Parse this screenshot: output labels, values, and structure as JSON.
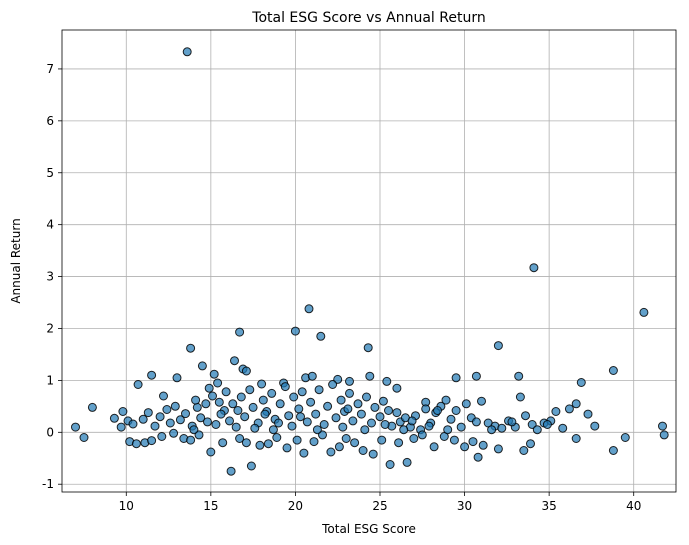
{
  "chart_data": {
    "type": "scatter",
    "title": "Total ESG Score vs Annual Return",
    "xlabel": "Total ESG Score",
    "ylabel": "Annual Return",
    "xlim": [
      6.2,
      42.5
    ],
    "ylim": [
      -1.15,
      7.75
    ],
    "xticks": [
      10,
      15,
      20,
      25,
      30,
      35,
      40
    ],
    "yticks": [
      -1,
      0,
      1,
      2,
      3,
      4,
      5,
      6,
      7
    ],
    "grid": true,
    "marker_color": "#1f77b4",
    "marker_edge_color": "#000000",
    "marker_alpha": 0.7,
    "points": [
      [
        13.6,
        7.33
      ],
      [
        34.1,
        3.17
      ],
      [
        40.6,
        2.31
      ],
      [
        20.8,
        2.38
      ],
      [
        20.0,
        1.95
      ],
      [
        16.7,
        1.93
      ],
      [
        21.5,
        1.85
      ],
      [
        32.0,
        1.67
      ],
      [
        13.8,
        1.62
      ],
      [
        24.3,
        1.63
      ],
      [
        14.5,
        1.28
      ],
      [
        16.4,
        1.38
      ],
      [
        16.9,
        1.22
      ],
      [
        38.8,
        1.19
      ],
      [
        11.5,
        1.1
      ],
      [
        13.0,
        1.05
      ],
      [
        15.2,
        1.12
      ],
      [
        10.7,
        0.92
      ],
      [
        12.2,
        0.7
      ],
      [
        14.2,
        0.48
      ],
      [
        15.8,
        0.42
      ],
      [
        17.1,
        1.18
      ],
      [
        18.0,
        0.93
      ],
      [
        19.3,
        0.95
      ],
      [
        20.6,
        1.05
      ],
      [
        21.0,
        1.08
      ],
      [
        22.5,
        1.02
      ],
      [
        23.2,
        0.98
      ],
      [
        24.4,
        1.08
      ],
      [
        25.4,
        0.98
      ],
      [
        26.0,
        0.85
      ],
      [
        27.7,
        0.58
      ],
      [
        29.5,
        1.05
      ],
      [
        30.7,
        1.08
      ],
      [
        33.2,
        1.08
      ],
      [
        36.9,
        0.96
      ],
      [
        9.8,
        0.4
      ],
      [
        10.1,
        0.22
      ],
      [
        10.4,
        0.16
      ],
      [
        11.0,
        0.25
      ],
      [
        11.3,
        0.38
      ],
      [
        11.7,
        0.12
      ],
      [
        12.0,
        0.3
      ],
      [
        12.4,
        0.44
      ],
      [
        12.6,
        0.18
      ],
      [
        12.9,
        0.5
      ],
      [
        13.2,
        0.24
      ],
      [
        13.5,
        0.36
      ],
      [
        13.9,
        0.12
      ],
      [
        14.1,
        0.62
      ],
      [
        14.4,
        0.28
      ],
      [
        14.7,
        0.55
      ],
      [
        14.9,
        0.85
      ],
      [
        15.1,
        0.7
      ],
      [
        15.4,
        0.95
      ],
      [
        15.6,
        0.35
      ],
      [
        15.9,
        0.78
      ],
      [
        16.1,
        0.22
      ],
      [
        16.3,
        0.55
      ],
      [
        16.6,
        0.42
      ],
      [
        16.8,
        0.68
      ],
      [
        17.0,
        0.3
      ],
      [
        17.3,
        0.82
      ],
      [
        17.5,
        0.48
      ],
      [
        17.8,
        0.18
      ],
      [
        18.1,
        0.62
      ],
      [
        18.3,
        0.4
      ],
      [
        18.6,
        0.75
      ],
      [
        18.8,
        0.25
      ],
      [
        19.1,
        0.55
      ],
      [
        19.4,
        0.88
      ],
      [
        19.6,
        0.32
      ],
      [
        19.9,
        0.68
      ],
      [
        20.2,
        0.45
      ],
      [
        20.4,
        0.78
      ],
      [
        20.7,
        0.2
      ],
      [
        20.9,
        0.58
      ],
      [
        21.2,
        0.35
      ],
      [
        21.4,
        0.82
      ],
      [
        21.7,
        0.15
      ],
      [
        21.9,
        0.5
      ],
      [
        22.2,
        0.92
      ],
      [
        22.4,
        0.28
      ],
      [
        22.7,
        0.62
      ],
      [
        22.9,
        0.4
      ],
      [
        23.2,
        0.75
      ],
      [
        23.4,
        0.22
      ],
      [
        23.7,
        0.55
      ],
      [
        23.9,
        0.35
      ],
      [
        24.2,
        0.68
      ],
      [
        24.5,
        0.18
      ],
      [
        24.7,
        0.48
      ],
      [
        25.0,
        0.3
      ],
      [
        25.2,
        0.6
      ],
      [
        25.5,
        0.42
      ],
      [
        25.7,
        0.12
      ],
      [
        26.0,
        0.38
      ],
      [
        26.2,
        0.2
      ],
      [
        26.5,
        0.28
      ],
      [
        26.8,
        0.1
      ],
      [
        27.1,
        0.32
      ],
      [
        27.4,
        0.05
      ],
      [
        27.7,
        0.45
      ],
      [
        28.0,
        0.18
      ],
      [
        28.3,
        0.38
      ],
      [
        28.6,
        0.5
      ],
      [
        28.9,
        0.62
      ],
      [
        29.2,
        0.25
      ],
      [
        29.5,
        0.42
      ],
      [
        29.8,
        0.1
      ],
      [
        30.1,
        0.55
      ],
      [
        30.4,
        0.28
      ],
      [
        30.7,
        0.2
      ],
      [
        31.0,
        0.6
      ],
      [
        31.4,
        0.18
      ],
      [
        31.8,
        0.12
      ],
      [
        32.2,
        0.08
      ],
      [
        32.6,
        0.22
      ],
      [
        33.0,
        0.1
      ],
      [
        33.3,
        0.68
      ],
      [
        33.6,
        0.32
      ],
      [
        34.0,
        0.15
      ],
      [
        34.3,
        0.05
      ],
      [
        34.7,
        0.18
      ],
      [
        35.1,
        0.22
      ],
      [
        35.4,
        0.4
      ],
      [
        35.8,
        0.08
      ],
      [
        36.2,
        0.45
      ],
      [
        36.6,
        0.55
      ],
      [
        37.3,
        0.35
      ],
      [
        37.7,
        0.12
      ],
      [
        41.7,
        0.12
      ],
      [
        10.2,
        -0.18
      ],
      [
        10.6,
        -0.22
      ],
      [
        11.1,
        -0.2
      ],
      [
        11.5,
        -0.16
      ],
      [
        12.1,
        -0.08
      ],
      [
        12.8,
        -0.02
      ],
      [
        13.4,
        -0.12
      ],
      [
        13.8,
        -0.15
      ],
      [
        14.3,
        -0.05
      ],
      [
        15.0,
        -0.38
      ],
      [
        15.7,
        -0.2
      ],
      [
        16.2,
        -0.75
      ],
      [
        16.7,
        -0.12
      ],
      [
        17.1,
        -0.2
      ],
      [
        17.4,
        -0.65
      ],
      [
        17.9,
        -0.25
      ],
      [
        18.4,
        -0.22
      ],
      [
        18.9,
        -0.1
      ],
      [
        19.5,
        -0.3
      ],
      [
        20.1,
        -0.15
      ],
      [
        20.5,
        -0.4
      ],
      [
        21.1,
        -0.18
      ],
      [
        21.6,
        -0.05
      ],
      [
        22.1,
        -0.38
      ],
      [
        22.6,
        -0.28
      ],
      [
        23.0,
        -0.12
      ],
      [
        23.5,
        -0.2
      ],
      [
        24.0,
        -0.35
      ],
      [
        24.6,
        -0.42
      ],
      [
        25.1,
        -0.15
      ],
      [
        25.6,
        -0.62
      ],
      [
        26.1,
        -0.2
      ],
      [
        26.6,
        -0.58
      ],
      [
        27.0,
        -0.12
      ],
      [
        27.5,
        -0.05
      ],
      [
        28.2,
        -0.28
      ],
      [
        28.8,
        -0.08
      ],
      [
        29.4,
        -0.15
      ],
      [
        30.0,
        -0.28
      ],
      [
        30.5,
        -0.18
      ],
      [
        30.8,
        -0.48
      ],
      [
        31.1,
        -0.25
      ],
      [
        32.0,
        -0.32
      ],
      [
        33.5,
        -0.35
      ],
      [
        33.9,
        -0.22
      ],
      [
        36.6,
        -0.12
      ],
      [
        38.8,
        -0.35
      ],
      [
        39.5,
        -0.1
      ],
      [
        41.8,
        -0.05
      ],
      [
        7.0,
        0.1
      ],
      [
        7.5,
        -0.1
      ],
      [
        8.0,
        0.48
      ],
      [
        9.3,
        0.27
      ],
      [
        9.7,
        0.1
      ],
      [
        14.0,
        0.05
      ],
      [
        15.3,
        0.15
      ],
      [
        16.5,
        0.1
      ],
      [
        17.6,
        0.08
      ],
      [
        18.7,
        0.05
      ],
      [
        19.8,
        0.12
      ],
      [
        21.3,
        0.05
      ],
      [
        22.8,
        0.1
      ],
      [
        24.1,
        0.05
      ],
      [
        25.3,
        0.15
      ],
      [
        26.4,
        0.05
      ],
      [
        27.9,
        0.12
      ],
      [
        29.0,
        0.05
      ],
      [
        31.6,
        0.05
      ],
      [
        32.8,
        0.2
      ],
      [
        34.9,
        0.15
      ],
      [
        15.5,
        0.58
      ],
      [
        18.2,
        0.35
      ],
      [
        20.3,
        0.3
      ],
      [
        23.1,
        0.45
      ],
      [
        26.9,
        0.22
      ],
      [
        28.4,
        0.42
      ],
      [
        14.8,
        0.2
      ],
      [
        19.0,
        0.18
      ]
    ]
  }
}
